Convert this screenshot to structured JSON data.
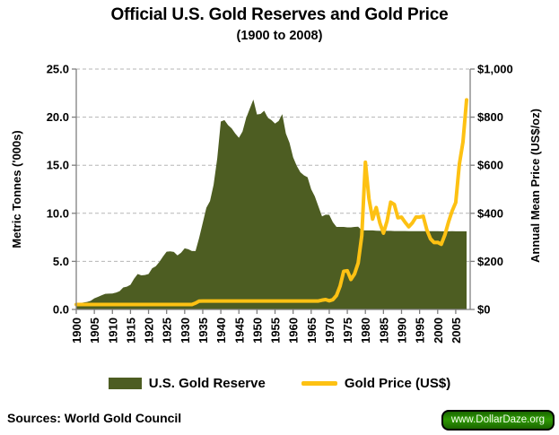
{
  "title": "Official U.S. Gold Reserves and Gold Price",
  "subtitle": "(1900 to 2008)",
  "left_axis": {
    "title": "Metric Tonnes ('000s)",
    "tick_labels": [
      "0.0",
      "5.0",
      "10.0",
      "15.0",
      "20.0",
      "25.0"
    ],
    "tick_values": [
      0,
      5,
      10,
      15,
      20,
      25
    ],
    "min": 0,
    "max": 25
  },
  "right_axis": {
    "title": "Annual Mean Price (US$/oz)",
    "tick_labels": [
      "$0",
      "$200",
      "$400",
      "$600",
      "$800",
      "$1,000"
    ],
    "tick_values": [
      0,
      200,
      400,
      600,
      800,
      1000
    ],
    "min": 0,
    "max": 1000
  },
  "x_axis": {
    "tick_labels": [
      "1900",
      "1905",
      "1910",
      "1915",
      "1920",
      "1925",
      "1930",
      "1935",
      "1940",
      "1945",
      "1950",
      "1955",
      "1960",
      "1965",
      "1970",
      "1975",
      "1980",
      "1985",
      "1990",
      "1995",
      "2000",
      "2005"
    ],
    "tick_values": [
      1900,
      1905,
      1910,
      1915,
      1920,
      1925,
      1930,
      1935,
      1940,
      1945,
      1950,
      1955,
      1960,
      1965,
      1970,
      1975,
      1980,
      1985,
      1990,
      1995,
      2000,
      2005
    ]
  },
  "legend": {
    "items": [
      {
        "label": "U.S. Gold Reserve",
        "type": "area"
      },
      {
        "label": "Gold Price (US$)",
        "type": "line"
      }
    ],
    "position": "bottom"
  },
  "footer": {
    "sources": "Sources: World Gold Council",
    "badge": "www.DollarDaze.org"
  },
  "colors": {
    "reserve_fill": "#4d5d22",
    "price_line": "#fdc113",
    "gridline": "#b5b5b5",
    "axis_line": "#7f7f7f",
    "text": "#000000",
    "badge_bg": "#2f9a02",
    "badge_bg_dark": "#1a6600",
    "badge_text": "#f4fff1",
    "badge_border": "#000000"
  },
  "chart_data": {
    "type": "area+line combo",
    "title": "Official U.S. Gold Reserves and Gold Price (1900 to 2008)",
    "grid": true,
    "legend_position": "bottom",
    "ylim_left": [
      0,
      25
    ],
    "ylim_right": [
      0,
      1000
    ],
    "x": [
      1900,
      1901,
      1902,
      1903,
      1904,
      1905,
      1906,
      1907,
      1908,
      1909,
      1910,
      1911,
      1912,
      1913,
      1914,
      1915,
      1916,
      1917,
      1918,
      1919,
      1920,
      1921,
      1922,
      1923,
      1924,
      1925,
      1926,
      1927,
      1928,
      1929,
      1930,
      1931,
      1932,
      1933,
      1934,
      1935,
      1936,
      1937,
      1938,
      1939,
      1940,
      1941,
      1942,
      1943,
      1944,
      1945,
      1946,
      1947,
      1948,
      1949,
      1950,
      1951,
      1952,
      1953,
      1954,
      1955,
      1956,
      1957,
      1958,
      1959,
      1960,
      1961,
      1962,
      1963,
      1964,
      1965,
      1966,
      1967,
      1968,
      1969,
      1970,
      1971,
      1972,
      1973,
      1974,
      1975,
      1976,
      1977,
      1978,
      1979,
      1980,
      1981,
      1982,
      1983,
      1984,
      1985,
      1986,
      1987,
      1988,
      1989,
      1990,
      1991,
      1992,
      1993,
      1994,
      1995,
      1996,
      1997,
      1998,
      1999,
      2000,
      2001,
      2002,
      2003,
      2004,
      2005,
      2006,
      2007,
      2008
    ],
    "series": [
      {
        "name": "U.S. Gold Reserve",
        "type": "area",
        "axis": "left",
        "units": "thousand metric tonnes",
        "values": [
          0.6,
          0.66,
          0.72,
          0.78,
          0.9,
          1.15,
          1.3,
          1.47,
          1.62,
          1.64,
          1.66,
          1.75,
          1.9,
          2.29,
          2.37,
          2.57,
          3.2,
          3.69,
          3.55,
          3.58,
          3.68,
          4.28,
          4.49,
          4.94,
          5.5,
          6.0,
          6.04,
          5.98,
          5.62,
          5.9,
          6.36,
          6.26,
          6.07,
          6.07,
          7.44,
          9.0,
          10.58,
          11.26,
          12.97,
          15.68,
          19.54,
          19.7,
          19.17,
          18.83,
          18.3,
          17.85,
          18.51,
          19.9,
          20.87,
          21.83,
          20.28,
          20.33,
          20.66,
          19.94,
          19.7,
          19.33,
          19.6,
          20.31,
          18.29,
          17.34,
          15.82,
          14.94,
          14.27,
          13.95,
          13.75,
          12.5,
          11.76,
          10.72,
          9.68,
          9.85,
          9.84,
          9.07,
          8.58,
          8.58,
          8.58,
          8.54,
          8.54,
          8.58,
          8.6,
          8.23,
          8.22,
          8.22,
          8.22,
          8.19,
          8.17,
          8.17,
          8.17,
          8.17,
          8.15,
          8.15,
          8.15,
          8.15,
          8.14,
          8.14,
          8.14,
          8.14,
          8.14,
          8.14,
          8.14,
          8.14,
          8.14,
          8.13,
          8.13,
          8.13,
          8.14,
          8.13,
          8.13,
          8.13,
          8.13
        ]
      },
      {
        "name": "Gold Price (US$)",
        "type": "line",
        "axis": "right",
        "units": "US$/oz annual mean",
        "values": [
          20.67,
          20.67,
          20.67,
          20.67,
          20.67,
          20.67,
          20.67,
          20.67,
          20.67,
          20.67,
          20.67,
          20.67,
          20.67,
          20.67,
          20.67,
          20.67,
          20.67,
          20.67,
          20.67,
          20.67,
          20.67,
          20.67,
          20.67,
          20.67,
          20.67,
          20.67,
          20.67,
          20.67,
          20.67,
          20.67,
          20.67,
          20.67,
          20.67,
          26.33,
          34.69,
          35.0,
          35.0,
          35.0,
          35.0,
          35.0,
          35.0,
          35.0,
          35.0,
          35.0,
          35.0,
          35.0,
          35.0,
          35.0,
          35.0,
          35.0,
          35.0,
          35.0,
          35.0,
          35.0,
          35.0,
          35.0,
          35.0,
          35.0,
          35.0,
          35.0,
          35.0,
          35.0,
          35.0,
          35.0,
          35.0,
          35.0,
          35.0,
          35.0,
          38.69,
          41.09,
          35.94,
          40.8,
          58.16,
          97.32,
          158.83,
          160.87,
          124.8,
          147.71,
          193.22,
          306.68,
          612.56,
          459.64,
          375.91,
          423.83,
          360.29,
          317.3,
          367.87,
          446.22,
          436.93,
          381.44,
          383.73,
          362.34,
          343.86,
          360.08,
          384.15,
          384.05,
          387.73,
          331.29,
          294.09,
          278.57,
          279.1,
          271.19,
          310.08,
          363.62,
          409.53,
          444.93,
          604.34,
          696.43,
          871.71
        ]
      }
    ]
  }
}
